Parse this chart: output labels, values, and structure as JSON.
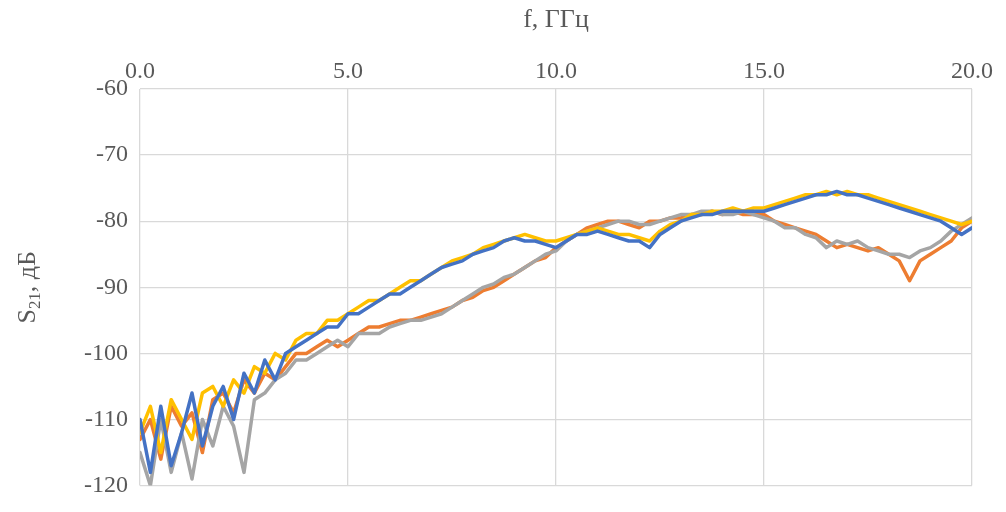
{
  "chart_data": {
    "type": "line",
    "xlabel": "f, ГГц",
    "ylabel": "S$_{21}$, дБ",
    "xlim": [
      0,
      20
    ],
    "xticks": [
      {
        "value": 0,
        "label": "0.0"
      },
      {
        "value": 5,
        "label": "5.0"
      },
      {
        "value": 10,
        "label": "10.0"
      },
      {
        "value": 15,
        "label": "15.0"
      },
      {
        "value": 20,
        "label": "20.0"
      }
    ],
    "ylim": [
      -120,
      -60
    ],
    "yticks": [
      -120,
      -110,
      -100,
      -90,
      -80,
      -70,
      -60
    ],
    "grid": true,
    "x": [
      0,
      0.25,
      0.5,
      0.75,
      1,
      1.25,
      1.5,
      1.75,
      2,
      2.25,
      2.5,
      2.75,
      3,
      3.25,
      3.5,
      3.75,
      4,
      4.25,
      4.5,
      4.75,
      5,
      5.25,
      5.5,
      5.75,
      6,
      6.25,
      6.5,
      6.75,
      7,
      7.25,
      7.5,
      7.75,
      8,
      8.25,
      8.5,
      8.75,
      9,
      9.25,
      9.5,
      9.75,
      10,
      10.25,
      10.5,
      10.75,
      11,
      11.25,
      11.5,
      11.75,
      12,
      12.25,
      12.5,
      12.75,
      13,
      13.25,
      13.5,
      13.75,
      14,
      14.25,
      14.5,
      14.75,
      15,
      15.25,
      15.5,
      15.75,
      16,
      16.25,
      16.5,
      16.75,
      17,
      17.25,
      17.5,
      17.75,
      18,
      18.25,
      18.5,
      18.75,
      19,
      19.25,
      19.5,
      19.75,
      20
    ],
    "series": [
      {
        "color": "#ed7d31",
        "values": [
          -113,
          -110,
          -116,
          -108,
          -111,
          -109,
          -115,
          -107,
          -106,
          -109,
          -104,
          -106,
          -103,
          -104,
          -102,
          -100,
          -100,
          -99,
          -98,
          -99,
          -98,
          -97,
          -96,
          -96,
          -95.5,
          -95,
          -95,
          -94.5,
          -94,
          -93.5,
          -93,
          -92,
          -91.5,
          -90.5,
          -90,
          -89,
          -88,
          -87,
          -86,
          -85.5,
          -84,
          -83,
          -82,
          -81,
          -80.5,
          -80,
          -80,
          -80.5,
          -81,
          -80,
          -80,
          -79.5,
          -79.5,
          -79,
          -79,
          -78.5,
          -79,
          -78.5,
          -79,
          -79,
          -79,
          -80,
          -80.5,
          -81,
          -81.5,
          -82,
          -83,
          -84,
          -83.5,
          -84,
          -84.5,
          -84,
          -85,
          -86,
          -89,
          -86,
          -85,
          -84,
          -83,
          -81,
          -80
        ]
      },
      {
        "color": "#a5a5a5",
        "values": [
          -115,
          -120,
          -110,
          -118,
          -112,
          -119,
          -110,
          -114,
          -108,
          -111,
          -118,
          -107,
          -106,
          -104,
          -103,
          -101,
          -101,
          -100,
          -99,
          -98,
          -99,
          -97,
          -97,
          -97,
          -96,
          -95.5,
          -95,
          -95,
          -94.5,
          -94,
          -93,
          -92,
          -91,
          -90,
          -89.5,
          -88.5,
          -88,
          -87,
          -86,
          -85,
          -84.5,
          -83,
          -82,
          -81.5,
          -81,
          -80.5,
          -80,
          -80,
          -80.5,
          -80.5,
          -80,
          -79.5,
          -79,
          -79,
          -78.5,
          -78.5,
          -79,
          -79,
          -78.5,
          -79,
          -79.5,
          -80,
          -81,
          -81,
          -82,
          -82.5,
          -84,
          -83,
          -83.5,
          -83,
          -84,
          -84.5,
          -85,
          -85,
          -85.5,
          -84.5,
          -84,
          -83,
          -81.5,
          -80.5,
          -79.5
        ]
      },
      {
        "color": "#ffc000",
        "values": [
          -112,
          -108,
          -115,
          -107,
          -110,
          -113,
          -106,
          -105,
          -108,
          -104,
          -106,
          -102,
          -103,
          -100,
          -101,
          -98,
          -97,
          -97,
          -95,
          -95,
          -94,
          -93,
          -92,
          -92,
          -91,
          -90,
          -89,
          -89,
          -88,
          -87,
          -86,
          -85.5,
          -85,
          -84,
          -83.5,
          -83,
          -82.5,
          -82,
          -82.5,
          -83,
          -83,
          -82.5,
          -82,
          -81.5,
          -81,
          -81.5,
          -82,
          -82,
          -82.5,
          -83,
          -81.5,
          -80.5,
          -80,
          -79,
          -79,
          -78.5,
          -78.5,
          -78,
          -78.5,
          -78,
          -78,
          -77.5,
          -77,
          -76.5,
          -76,
          -76,
          -75.5,
          -76,
          -75.5,
          -76,
          -76,
          -76.5,
          -77,
          -77.5,
          -78,
          -78.5,
          -79,
          -79.5,
          -80,
          -80.5,
          -80
        ]
      },
      {
        "color": "#4472c4",
        "values": [
          -110,
          -118,
          -108,
          -117,
          -112,
          -106,
          -114,
          -108,
          -105,
          -110,
          -103,
          -106,
          -101,
          -104,
          -100,
          -99,
          -98,
          -97,
          -96,
          -96,
          -94,
          -94,
          -93,
          -92,
          -91,
          -91,
          -90,
          -89,
          -88,
          -87,
          -86.5,
          -86,
          -85,
          -84.5,
          -84,
          -83,
          -82.5,
          -83,
          -83,
          -83.5,
          -84,
          -83,
          -82,
          -82,
          -81.5,
          -82,
          -82.5,
          -83,
          -83,
          -84,
          -82,
          -81,
          -80,
          -79.5,
          -79,
          -79,
          -78.5,
          -78.5,
          -78.5,
          -78.5,
          -78.5,
          -78,
          -77.5,
          -77,
          -76.5,
          -76,
          -76,
          -75.5,
          -76,
          -76,
          -76.5,
          -77,
          -77.5,
          -78,
          -78.5,
          -79,
          -79.5,
          -80,
          -81,
          -82,
          -81
        ]
      }
    ]
  }
}
